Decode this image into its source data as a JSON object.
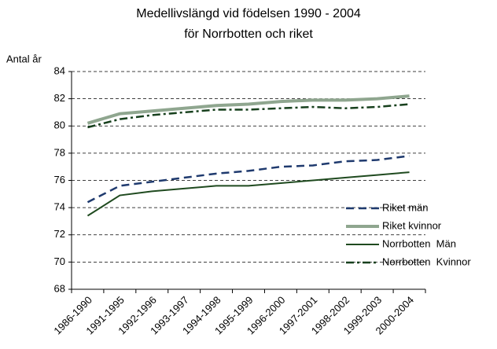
{
  "chart_data": {
    "type": "line",
    "title": "Medellivslängd vid födelsen 1990 - 2004",
    "subtitle": "för Norrbotten och riket",
    "y_label": "Antal år",
    "categories": [
      "1986-1990",
      "1991-1995",
      "1992-1996",
      "1993-1997",
      "1994-1998",
      "1995-1999",
      "1996-2000",
      "1997-2001",
      "1998-2002",
      "1999-2003",
      "2000-2004"
    ],
    "ylim": [
      68,
      84
    ],
    "yticks": [
      68,
      70,
      72,
      74,
      76,
      78,
      80,
      82,
      84
    ],
    "grid": true,
    "legend": "right",
    "series": [
      {
        "name": "Riket män",
        "color": "#1f3a6e",
        "style": "dashed",
        "values": [
          74.4,
          75.6,
          75.9,
          76.2,
          76.5,
          76.7,
          77.0,
          77.1,
          77.4,
          77.5,
          77.8
        ]
      },
      {
        "name": "Riket kvinnor",
        "color": "#8fa68f",
        "style": "thick",
        "values": [
          80.2,
          80.9,
          81.1,
          81.3,
          81.5,
          81.6,
          81.8,
          81.9,
          81.9,
          82.0,
          82.2
        ]
      },
      {
        "name": "Norrbotten  Män",
        "color": "#1f4a1f",
        "style": "solid",
        "values": [
          73.4,
          74.9,
          75.2,
          75.4,
          75.6,
          75.6,
          75.8,
          76.0,
          76.2,
          76.4,
          76.6
        ]
      },
      {
        "name": "Norrbotten  Kvinnor",
        "color": "#17401d",
        "style": "dashdot",
        "values": [
          79.9,
          80.5,
          80.8,
          81.0,
          81.2,
          81.2,
          81.3,
          81.4,
          81.3,
          81.4,
          81.6
        ]
      }
    ]
  }
}
